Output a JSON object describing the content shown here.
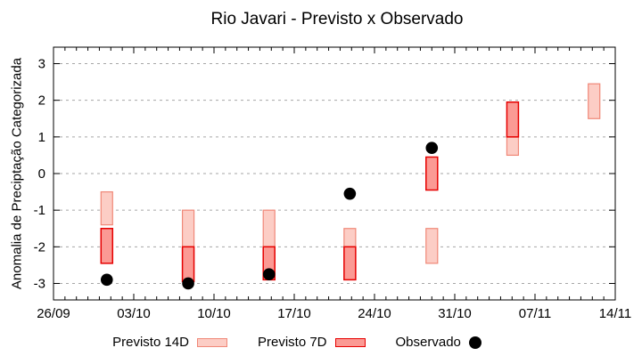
{
  "chart_data": {
    "type": "bar",
    "title": "Rio Javari - Previsto x Observado",
    "ylabel": "Anomalia de Preciptação Categorizada",
    "ylim": [
      -3.45,
      3.45
    ],
    "y_ticks": [
      -3,
      -2,
      -1,
      0,
      1,
      2,
      3
    ],
    "grid": "dashed horizontal",
    "x_range_days": 49,
    "x_tick_days": [
      0,
      7,
      14,
      21,
      28,
      35,
      42,
      49
    ],
    "x_tick_labels": [
      "26/09",
      "03/10",
      "10/10",
      "17/10",
      "24/10",
      "31/10",
      "07/11",
      "14/11"
    ],
    "series_note": "previsto ranges are [top,bottom] category values; observado is a point",
    "groups": [
      {
        "date": "01/10",
        "day": 4.65,
        "previsto_14d": [
          -0.5,
          -1.4
        ],
        "previsto_7d": [
          -1.5,
          -2.45
        ],
        "observado": -2.9
      },
      {
        "date": "08/10",
        "day": 11.75,
        "previsto_14d": [
          -1.0,
          -2.0
        ],
        "previsto_7d": [
          -2.0,
          -2.95
        ],
        "observado": -3.0
      },
      {
        "date": "15/10",
        "day": 18.8,
        "previsto_14d": [
          -1.0,
          -2.0
        ],
        "previsto_7d": [
          -2.0,
          -2.9
        ],
        "observado": -2.75
      },
      {
        "date": "22/10",
        "day": 25.85,
        "previsto_14d": [
          -1.5,
          -2.0
        ],
        "previsto_7d": [
          -2.0,
          -2.9
        ],
        "observado": -0.55
      },
      {
        "date": "29/10",
        "day": 33.0,
        "previsto_14d": [
          -1.5,
          -2.45
        ],
        "previsto_7d": [
          0.45,
          -0.45
        ],
        "observado": 0.7
      },
      {
        "date": "05/11",
        "day": 40.05,
        "previsto_14d": [
          1.0,
          0.5
        ],
        "previsto_7d": [
          1.95,
          1.0
        ],
        "observado": null
      },
      {
        "date": "12/11",
        "day": 47.15,
        "previsto_14d": [
          2.45,
          1.5
        ],
        "previsto_7d": null,
        "observado": null
      }
    ]
  },
  "legend": {
    "items": [
      {
        "label": "Previsto 14D",
        "swatch": "light-pink-box"
      },
      {
        "label": "Previsto 7D",
        "swatch": "red-box"
      },
      {
        "label": "Observado",
        "swatch": "black-dot"
      }
    ]
  },
  "colors": {
    "previsto_14d_fill": "#fccdc5",
    "previsto_14d_border": "#f08878",
    "previsto_7d_fill": "#fb9a94",
    "previsto_7d_border": "#e60000",
    "observado": "#000000",
    "grid": "#a6a6a6",
    "axis": "#000000",
    "background": "#ffffff"
  }
}
